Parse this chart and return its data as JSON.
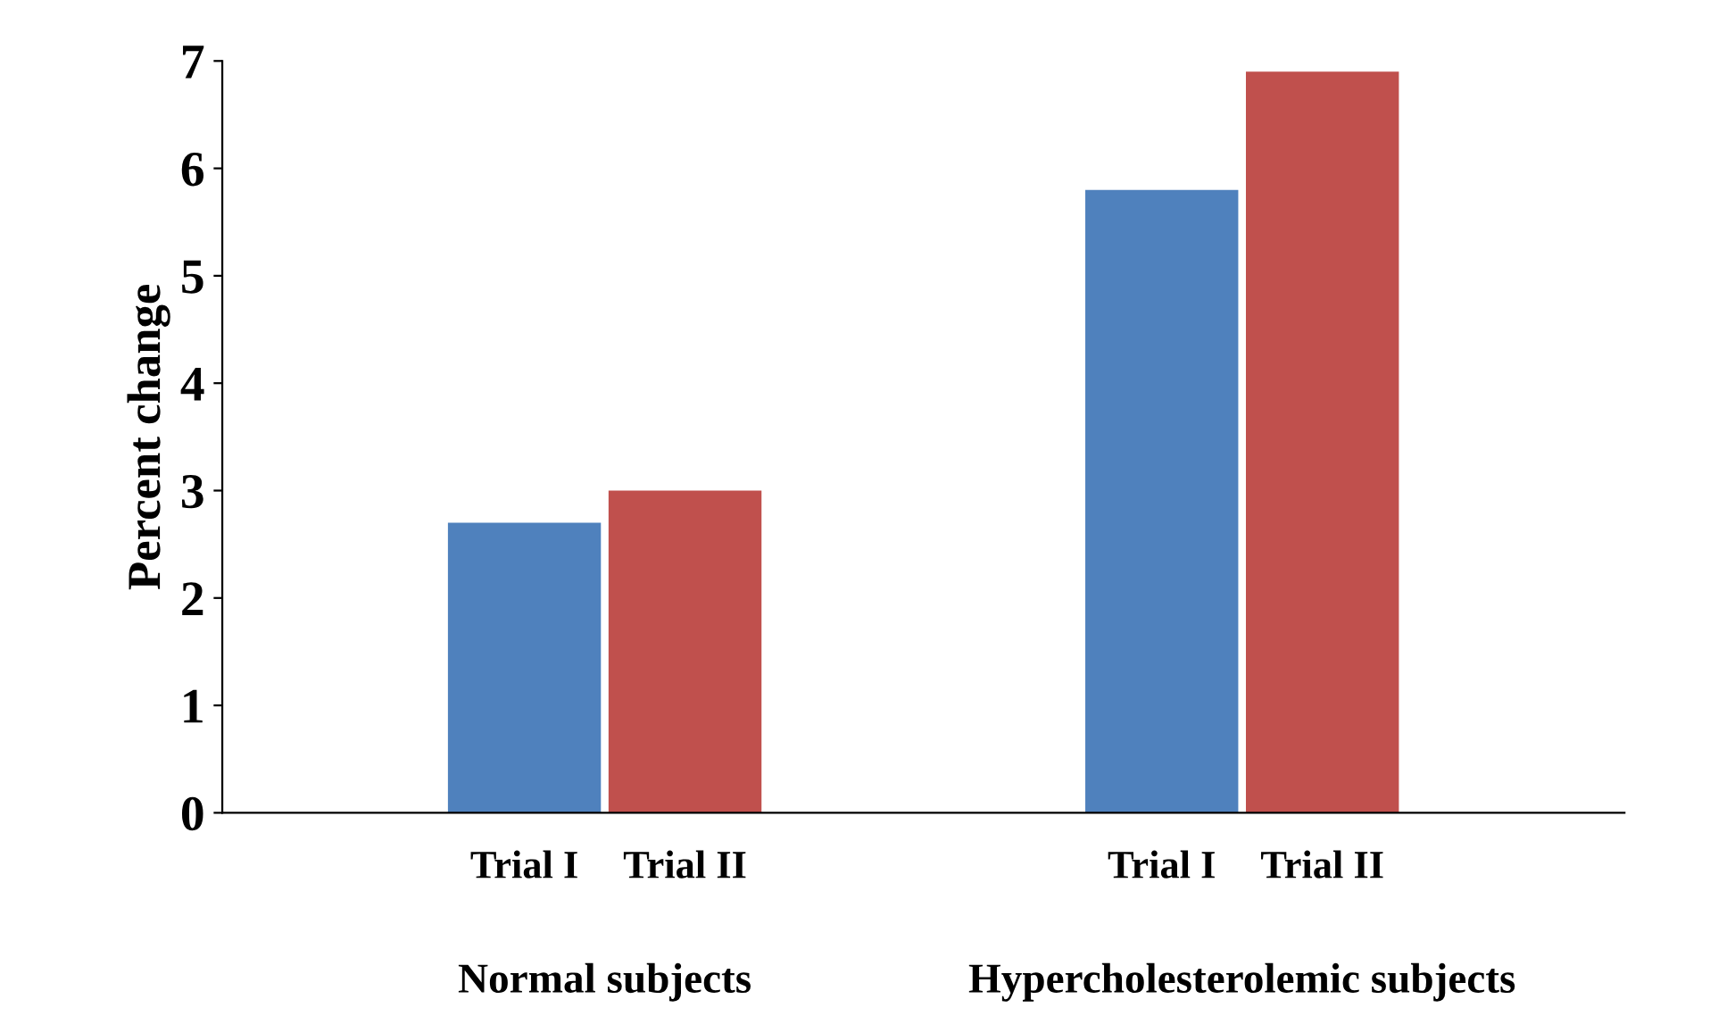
{
  "chart_data": {
    "type": "bar",
    "ylabel": "Percent change",
    "categories": [
      "Normal subjects",
      "Hypercholesterolemic subjects"
    ],
    "series": [
      {
        "name": "Trial I",
        "color": "#4f81bd",
        "values": [
          2.7,
          5.8
        ]
      },
      {
        "name": "Trial II",
        "color": "#c0504d",
        "values": [
          3.0,
          6.9
        ]
      }
    ],
    "ylim": [
      0,
      7
    ],
    "yticks": [
      0,
      1,
      2,
      3,
      4,
      5,
      6,
      7
    ],
    "grid": false,
    "legend": false
  }
}
